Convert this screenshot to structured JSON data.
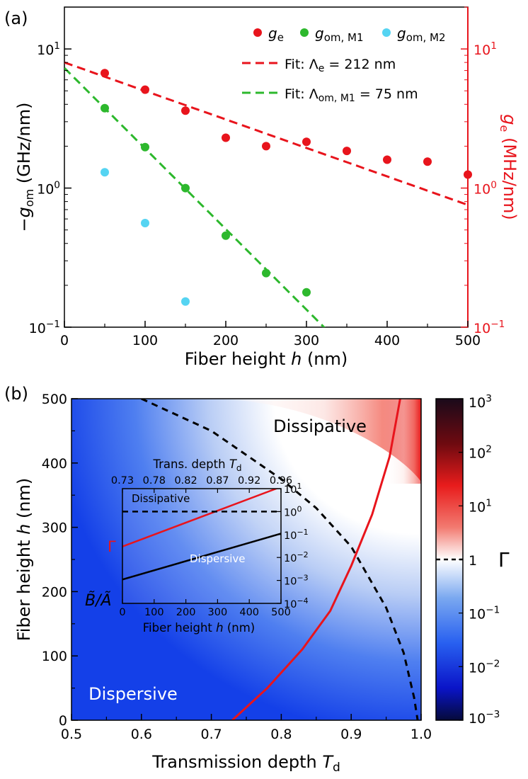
{
  "panel_a": {
    "label": "(a)",
    "chart_data": {
      "type": "scatter",
      "xlabel": "Fiber height h (nm)",
      "xlim": [
        0,
        500
      ],
      "x_ticks": [
        "0",
        "100",
        "200",
        "300",
        "400",
        "500"
      ],
      "ylabel_left": "−g_om (GHz/nm)",
      "ylabel_right": "g_e (MHz/nm)",
      "ylim": [
        0.1,
        20
      ],
      "yscale": "log",
      "series": [
        {
          "name": "g_e",
          "color": "#e8141c",
          "x": [
            50,
            100,
            150,
            200,
            250,
            300,
            350,
            400,
            450,
            500
          ],
          "y": [
            6.7,
            5.1,
            3.6,
            2.3,
            2.0,
            2.15,
            1.85,
            1.6,
            1.55,
            1.25
          ]
        },
        {
          "name": "g_om,M1",
          "color": "#2db82d",
          "x": [
            50,
            100,
            150,
            200,
            250,
            300
          ],
          "y": [
            3.75,
            1.97,
            1.0,
            0.455,
            0.245,
            0.178
          ]
        },
        {
          "name": "g_om,M2",
          "color": "#55d4f2",
          "x": [
            50,
            100,
            150
          ],
          "y": [
            1.3,
            0.56,
            0.153
          ]
        }
      ],
      "fits": [
        {
          "name": "Fit: Λe = 212 nm",
          "color": "#e8141c",
          "decay_length_nm": 212,
          "y_at_0": 8.0
        },
        {
          "name": "Fit: Λom, M1 = 75 nm",
          "color": "#2db82d",
          "decay_length_nm": 75,
          "y_at_0": 7.3
        }
      ],
      "legend": {
        "ge": "g_e",
        "gom1": "g_om, M1",
        "gom2": "g_om, M2",
        "fit_e": "Fit: Λe = 212 nm",
        "fit_om": "Fit: Λom, M1 = 75 nm"
      }
    }
  },
  "panel_b": {
    "label": "(b)",
    "chart_data": {
      "type": "heatmap",
      "xlabel": "Transmission depth T_d",
      "ylabel": "Fiber height h (nm)",
      "xlim": [
        0.5,
        1.0
      ],
      "ylim": [
        0,
        500
      ],
      "x_ticks": [
        "0.5",
        "0.6",
        "0.7",
        "0.8",
        "0.9",
        "1.0"
      ],
      "y_ticks": [
        "0",
        "100",
        "200",
        "300",
        "400",
        "500"
      ],
      "region_labels": {
        "dissipative": "Dissipative",
        "dispersive": "Dispersive"
      },
      "colorbar": {
        "label": "Γ",
        "range": [
          0.001,
          1000
        ],
        "scale": "log",
        "one_label": "1",
        "colors": [
          "#1a0a1a",
          "#6e0a10",
          "#e81c1c",
          "#f27a70",
          "#ffffff",
          "#7aa8f0",
          "#2860f0",
          "#0a14c8",
          "#050a3a"
        ]
      },
      "boundary_curve": {
        "name": "Γ = 1",
        "style": "dashed",
        "color": "#000000",
        "points_Td_h": [
          [
            0.6,
            500
          ],
          [
            0.7,
            450
          ],
          [
            0.8,
            375
          ],
          [
            0.85,
            330
          ],
          [
            0.9,
            270
          ],
          [
            0.95,
            175
          ],
          [
            0.975,
            105
          ],
          [
            0.99,
            35
          ],
          [
            0.995,
            0
          ]
        ]
      },
      "red_curve": {
        "color": "#e8141c",
        "points_Td_h": [
          [
            0.73,
            0
          ],
          [
            0.78,
            50
          ],
          [
            0.83,
            110
          ],
          [
            0.87,
            170
          ],
          [
            0.9,
            240
          ],
          [
            0.93,
            320
          ],
          [
            0.955,
            410
          ],
          [
            0.97,
            500
          ]
        ]
      },
      "inset": {
        "top_axis_label": "Trans. depth T_d",
        "top_ticks": [
          "0.73",
          "0.78",
          "0.82",
          "0.87",
          "0.92",
          "0.96"
        ],
        "xlabel": "Fiber height h (nm)",
        "x_ticks": [
          "0",
          "100",
          "200",
          "300",
          "400",
          "500"
        ],
        "right_axis": {
          "scale": "log",
          "range": [
            0.0001,
            10
          ]
        },
        "dissipative_label": "Dissipative",
        "dispersive_label": "Dispersive",
        "gamma_label": "Γ",
        "ratio_label": "B̃/Ã",
        "lines": [
          {
            "name": "Γ",
            "color": "#e8141c",
            "x": [
              0,
              500
            ],
            "y": [
              0.03,
              12
            ]
          },
          {
            "name": "B̃/Ã",
            "color": "#000000",
            "x": [
              0,
              500
            ],
            "y": [
              0.0011,
              0.11
            ]
          },
          {
            "name": "Γ = 1",
            "color": "#000000",
            "style": "dashed",
            "x": [
              0,
              500
            ],
            "y": [
              1,
              1
            ]
          }
        ]
      }
    }
  }
}
